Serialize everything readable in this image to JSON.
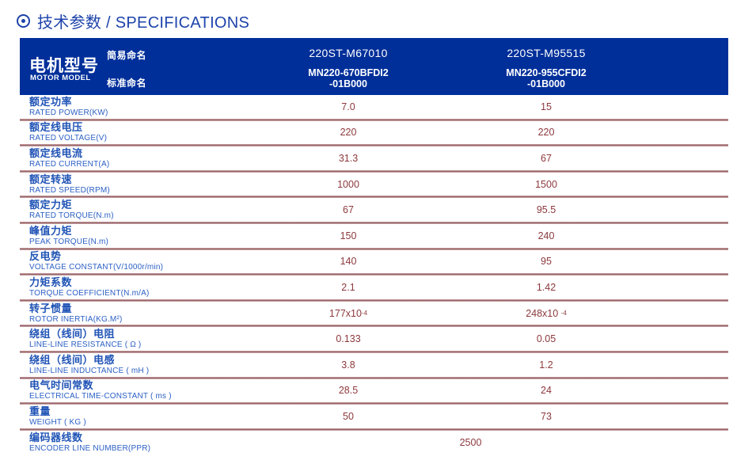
{
  "title": {
    "icon": "circle-dot-icon",
    "text": "技术参数 / SPECIFICATIONS"
  },
  "colors": {
    "title_blue": "#1e44ab",
    "header_bg": "#002f9a",
    "label_zh_blue": "#2154b6",
    "label_en_blue": "#2c60c4",
    "value_maroon": "#8c393d",
    "divider_rose": "#8e585c"
  },
  "header": {
    "motor_model_zh": "电机型号",
    "motor_model_en": "MOTOR MODEL",
    "simple_name_label": "简易命名",
    "standard_name_label": "标准命名",
    "columns": [
      {
        "simple": "220ST-M67010",
        "standard_line1": "MN220-670BFDI2",
        "standard_line2": "-01B000"
      },
      {
        "simple": "220ST-M95515",
        "standard_line1": "MN220-955CFDI2",
        "standard_line2": "-01B000"
      }
    ]
  },
  "rows": [
    {
      "zh": "额定功率",
      "en": "RATED POWER(KW)",
      "v1": "7.0",
      "v2": "15"
    },
    {
      "zh": "额定线电压",
      "en": "RATED VOLTAGE(V)",
      "v1": "220",
      "v2": "220"
    },
    {
      "zh": "额定线电流",
      "en": "RATED CURRENT(A)",
      "v1": "31.3",
      "v2": "67"
    },
    {
      "zh": "额定转速",
      "en": "RATED SPEED(RPM)",
      "v1": "1000",
      "v2": "1500"
    },
    {
      "zh": "额定力矩",
      "en": "RATED TORQUE(N.m)",
      "v1": "67",
      "v2": "95.5"
    },
    {
      "zh": "峰值力矩",
      "en": "PEAK TORQUE(N.m)",
      "v1": "150",
      "v2": "240"
    },
    {
      "zh": "反电势",
      "en": "VOLTAGE CONSTANT(V/1000r/min)",
      "v1": "140",
      "v2": "95"
    },
    {
      "zh": "力矩系数",
      "en": "TORQUE COEFFICIENT(N.m/A)",
      "v1": "2.1",
      "v2": "1.42"
    },
    {
      "zh": "转子惯量",
      "en": "ROTOR INERTIA(KG.M²)",
      "v1": "177x10",
      "v1sup": "-4",
      "v2": "248x10 ",
      "v2sup": "-4"
    },
    {
      "zh": "绕组（线间）电阻",
      "en": "LINE-LINE RESISTANCE ( Ω )",
      "v1": "0.133",
      "v2": "0.05"
    },
    {
      "zh": "绕组（线间）电感",
      "en": "LINE-LINE INDUCTANCE ( mH )",
      "v1": "3.8",
      "v2": "1.2"
    },
    {
      "zh": "电气时间常数",
      "en": "ELECTRICAL TIME-CONSTANT ( ms )",
      "v1": "28.5",
      "v2": "24"
    },
    {
      "zh": "重量",
      "en": "WEIGHT ( KG )",
      "v1": "50",
      "v2": "73"
    },
    {
      "zh": "编码器线数",
      "en": "ENCODER LINE NUMBER(PPR)",
      "merged": "2500"
    }
  ]
}
